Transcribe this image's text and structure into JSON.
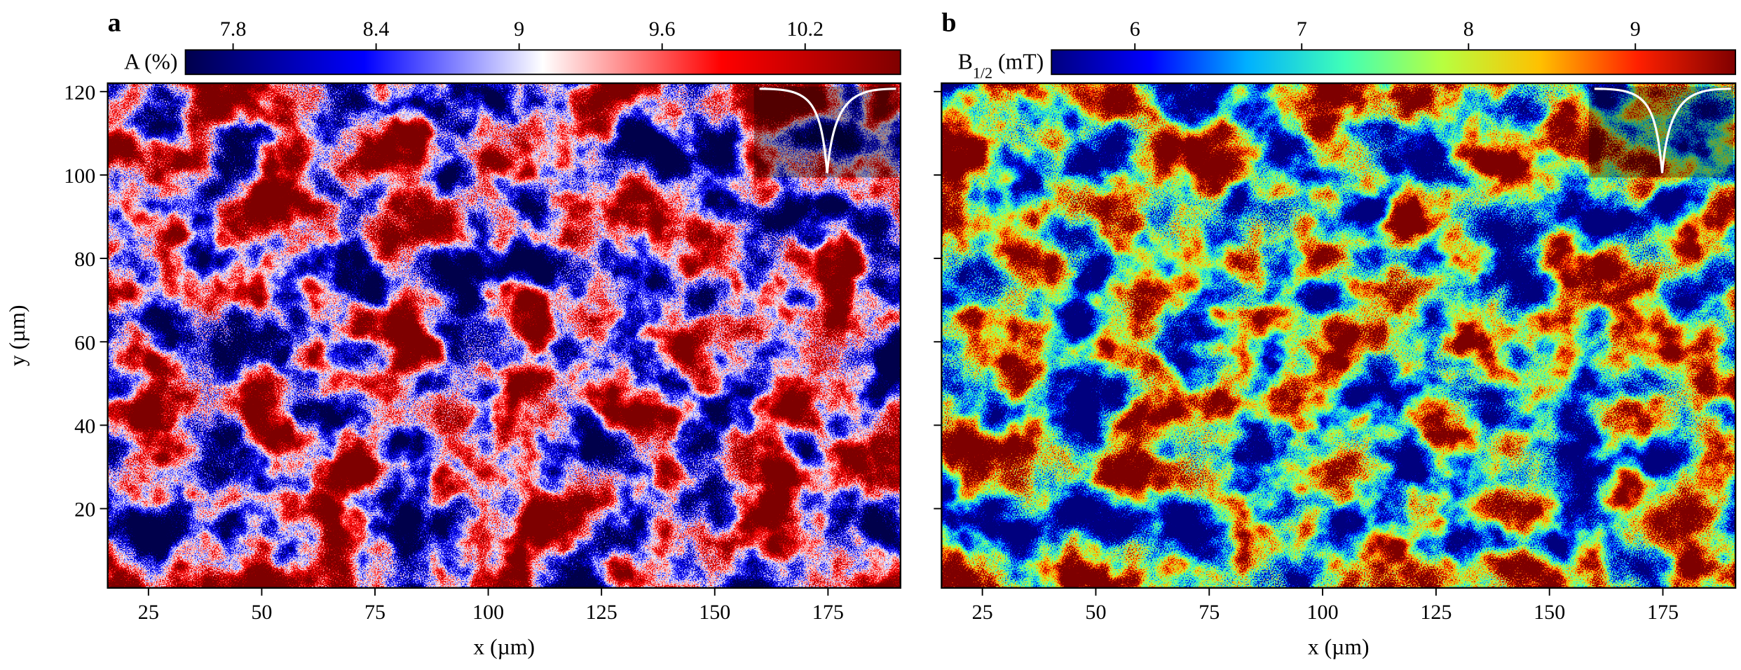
{
  "chart_data": [
    {
      "type": "heatmap",
      "panel_label": "a",
      "colorbar_label": [
        {
          "text": "A (%)"
        }
      ],
      "colormap": [
        "#00004c",
        "#0000ff",
        "#ffffff",
        "#ff0000",
        "#7f0000"
      ],
      "clim": [
        7.6,
        10.6
      ],
      "cticks": [
        7.8,
        8.4,
        9.0,
        9.6,
        10.2
      ],
      "xlabel": "x (µm)",
      "ylabel": "y (µm)",
      "xlim": [
        16,
        191
      ],
      "xticks": [
        25,
        50,
        75,
        100,
        125,
        150,
        175
      ],
      "ylim": [
        1,
        122
      ],
      "yticks": [
        20,
        40,
        60,
        80,
        100,
        120
      ],
      "show_ytick_labels": true
    },
    {
      "type": "heatmap",
      "panel_label": "b",
      "colorbar_label": [
        {
          "text": "B"
        },
        {
          "text": "1/2",
          "sub": true
        },
        {
          "text": " (mT)"
        }
      ],
      "colormap": [
        "#00007f",
        "#0000ff",
        "#00b0ff",
        "#40ffb7",
        "#b7ff40",
        "#ffc000",
        "#ff2000",
        "#7f0000"
      ],
      "clim": [
        5.5,
        9.6
      ],
      "cticks": [
        6,
        7,
        8,
        9
      ],
      "xlabel": "x (µm)",
      "xlim": [
        16,
        191
      ],
      "xticks": [
        25,
        50,
        75,
        100,
        125,
        150,
        175
      ],
      "ylim": [
        1,
        122
      ],
      "yticks": [
        20,
        40,
        60,
        80,
        100,
        120
      ],
      "show_ytick_labels": false
    }
  ]
}
